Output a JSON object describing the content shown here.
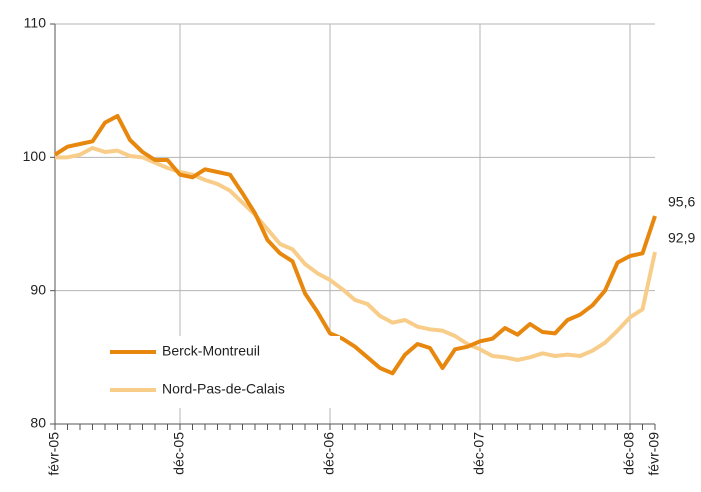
{
  "chart_data": {
    "type": "line",
    "categories": [
      "févr-05",
      null,
      null,
      null,
      null,
      null,
      null,
      null,
      null,
      null,
      "déc-05",
      null,
      null,
      null,
      null,
      null,
      null,
      null,
      null,
      null,
      null,
      null,
      "déc-06",
      null,
      null,
      null,
      null,
      null,
      null,
      null,
      null,
      null,
      null,
      null,
      "déc-07",
      null,
      null,
      null,
      null,
      null,
      null,
      null,
      null,
      null,
      null,
      null,
      "déc-08",
      null,
      "févr-09"
    ],
    "series": [
      {
        "name": "Berck-Montreuil",
        "color": "#e8870e",
        "values": [
          100.2,
          100.8,
          101.0,
          101.2,
          102.6,
          103.1,
          101.3,
          100.4,
          99.8,
          99.8,
          98.7,
          98.5,
          99.1,
          98.9,
          98.7,
          97.3,
          95.8,
          93.8,
          92.8,
          92.2,
          89.8,
          88.4,
          86.8,
          86.4,
          85.8,
          85.0,
          84.2,
          83.8,
          85.2,
          86.0,
          85.7,
          84.2,
          85.6,
          85.8,
          86.2,
          86.4,
          87.2,
          86.7,
          87.5,
          86.9,
          86.8,
          87.8,
          88.2,
          88.9,
          90.0,
          92.1,
          92.6,
          92.8,
          95.6
        ],
        "value_labels": [
          null,
          null,
          null,
          null,
          null,
          null,
          null,
          null,
          null,
          null,
          null,
          null,
          null,
          null,
          null,
          null,
          null,
          null,
          null,
          null,
          null,
          null,
          null,
          null,
          null,
          null,
          null,
          null,
          null,
          null,
          null,
          null,
          null,
          null,
          null,
          null,
          null,
          null,
          null,
          null,
          null,
          null,
          null,
          null,
          null,
          null,
          null,
          null,
          "95,6"
        ]
      },
      {
        "name": "Nord-Pas-de-Calais",
        "color": "#f8cd8a",
        "values": [
          100.0,
          100.0,
          100.2,
          100.7,
          100.4,
          100.5,
          100.1,
          100.0,
          99.6,
          99.2,
          98.9,
          98.7,
          98.3,
          98.0,
          97.5,
          96.6,
          95.7,
          94.6,
          93.5,
          93.1,
          92.0,
          91.3,
          90.8,
          90.1,
          89.3,
          89.0,
          88.1,
          87.6,
          87.8,
          87.3,
          87.1,
          87.0,
          86.6,
          86.0,
          85.6,
          85.1,
          85.0,
          84.8,
          85.0,
          85.3,
          85.1,
          85.2,
          85.1,
          85.5,
          86.1,
          87.0,
          88.0,
          88.6,
          92.9
        ],
        "value_labels": [
          null,
          null,
          null,
          null,
          null,
          null,
          null,
          null,
          null,
          null,
          null,
          null,
          null,
          null,
          null,
          null,
          null,
          null,
          null,
          null,
          null,
          null,
          null,
          null,
          null,
          null,
          null,
          null,
          null,
          null,
          null,
          null,
          null,
          null,
          null,
          null,
          null,
          null,
          null,
          null,
          null,
          null,
          null,
          null,
          null,
          null,
          null,
          null,
          "92,9"
        ]
      }
    ],
    "ylim": [
      80,
      110
    ],
    "yticks": [
      80,
      90,
      100,
      110
    ],
    "grid": true,
    "legend": "lower left"
  }
}
